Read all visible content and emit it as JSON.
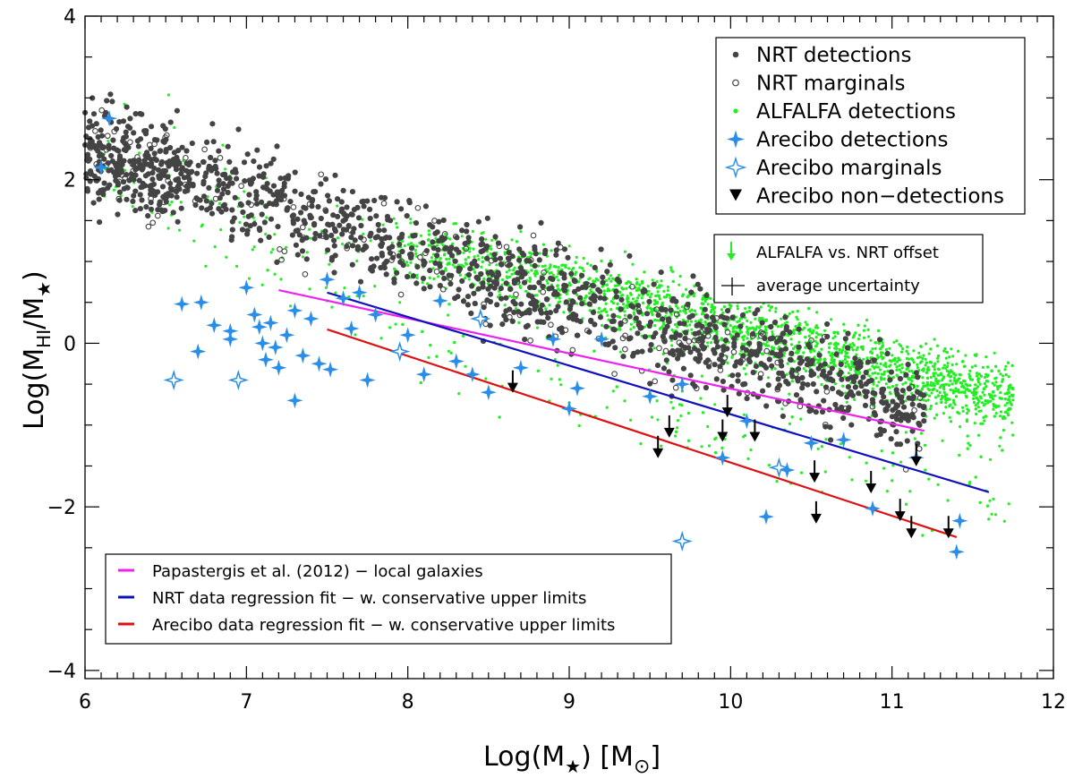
{
  "chart_data": {
    "type": "scatter",
    "xlabel_main": "Log(M",
    "xlabel_sub": "★",
    "xlabel_tail": ") [M",
    "xlabel_sub2": "⊙",
    "xlabel_end": "]",
    "ylabel_main": "Log(M",
    "ylabel_sub1": "HI",
    "ylabel_mid": "/M",
    "ylabel_sub2": "★",
    "ylabel_end": ")",
    "xlim": [
      6,
      12
    ],
    "ylim": [
      -4.1,
      4
    ],
    "xticks": [
      6,
      7,
      8,
      9,
      10,
      11,
      12
    ],
    "xtick_labels": [
      "6",
      "7",
      "8",
      "9",
      "10",
      "11",
      "12"
    ],
    "yticks": [
      -4,
      -2,
      0,
      2,
      4
    ],
    "ytick_labels": [
      "−4",
      "−2",
      "0",
      "2",
      "4"
    ],
    "colors": {
      "nrt": "#444444",
      "alfalfa": "#22ee22",
      "arecibo": "#2a8ee8",
      "papastergis": "#ee22ee",
      "nrt_fit": "#1111bb",
      "arecibo_fit": "#dd1111",
      "nondetection": "#000000"
    },
    "legend_top": {
      "items": [
        {
          "label": "NRT detections",
          "marker": "filled-circle"
        },
        {
          "label": "NRT marginals",
          "marker": "open-circle"
        },
        {
          "label": "ALFALFA detections",
          "marker": "green-dot"
        },
        {
          "label": "Arecibo detections",
          "marker": "filled-star"
        },
        {
          "label": "Arecibo marginals",
          "marker": "open-star"
        },
        {
          "label": "Arecibo non−detections",
          "marker": "triangle-down"
        }
      ]
    },
    "legend_mid": {
      "items": [
        {
          "label": "ALFALFA vs. NRT offset",
          "marker": "green-arrow"
        },
        {
          "label": "average uncertainty",
          "marker": "error-cross"
        }
      ]
    },
    "legend_bottom": {
      "items": [
        {
          "label": "Papastergis et al. (2012) − local galaxies",
          "color": "#ee22ee"
        },
        {
          "label": "NRT data regression fit − w. conservative upper limits",
          "color": "#1111bb"
        },
        {
          "label": "Arecibo data regression fit − w. conservative upper limits",
          "color": "#dd1111"
        }
      ]
    },
    "lines": [
      {
        "name": "Papastergis et al. (2012)",
        "color": "#ee22ee",
        "x": [
          7.2,
          11.2
        ],
        "y": [
          0.65,
          -1.07
        ]
      },
      {
        "name": "NRT data regression fit",
        "color": "#1111bb",
        "x": [
          7.5,
          11.6
        ],
        "y": [
          0.62,
          -1.82
        ]
      },
      {
        "name": "Arecibo data regression fit",
        "color": "#dd1111",
        "x": [
          7.5,
          11.4
        ],
        "y": [
          0.17,
          -2.37
        ]
      }
    ],
    "arecibo_detections": [
      [
        6.15,
        2.75
      ],
      [
        6.1,
        2.15
      ],
      [
        6.6,
        0.48
      ],
      [
        6.7,
        -0.1
      ],
      [
        6.72,
        0.5
      ],
      [
        6.8,
        0.22
      ],
      [
        6.9,
        0.15
      ],
      [
        6.9,
        0.05
      ],
      [
        7.0,
        0.68
      ],
      [
        7.05,
        0.35
      ],
      [
        7.08,
        0.2
      ],
      [
        7.1,
        0.0
      ],
      [
        7.12,
        -0.2
      ],
      [
        7.15,
        0.25
      ],
      [
        7.18,
        -0.05
      ],
      [
        7.2,
        -0.3
      ],
      [
        7.25,
        0.1
      ],
      [
        7.3,
        0.4
      ],
      [
        7.35,
        -0.15
      ],
      [
        7.4,
        0.3
      ],
      [
        7.45,
        -0.25
      ],
      [
        7.5,
        0.78
      ],
      [
        7.52,
        -0.32
      ],
      [
        7.6,
        0.55
      ],
      [
        7.65,
        0.18
      ],
      [
        7.7,
        0.62
      ],
      [
        7.75,
        -0.45
      ],
      [
        7.8,
        0.35
      ],
      [
        7.3,
        -0.7
      ],
      [
        8.0,
        0.1
      ],
      [
        8.1,
        -0.38
      ],
      [
        8.2,
        0.52
      ],
      [
        8.3,
        -0.22
      ],
      [
        8.4,
        -0.38
      ],
      [
        8.5,
        -0.6
      ],
      [
        9.0,
        -0.8
      ],
      [
        9.05,
        -0.55
      ],
      [
        9.2,
        0.05
      ],
      [
        9.5,
        -0.65
      ],
      [
        9.7,
        -0.5
      ],
      [
        9.95,
        -1.4
      ],
      [
        10.1,
        -0.95
      ],
      [
        10.22,
        -2.12
      ],
      [
        10.35,
        -1.55
      ],
      [
        10.5,
        -1.22
      ],
      [
        10.7,
        -1.18
      ],
      [
        10.88,
        -2.02
      ],
      [
        11.15,
        -1.4
      ],
      [
        11.42,
        -2.17
      ],
      [
        11.4,
        -2.55
      ],
      [
        8.9,
        0.05
      ],
      [
        8.7,
        -0.3
      ]
    ],
    "arecibo_marginals": [
      [
        6.55,
        -0.45
      ],
      [
        6.95,
        -0.45
      ],
      [
        9.7,
        -2.42
      ],
      [
        10.3,
        -1.52
      ],
      [
        7.95,
        -0.1
      ],
      [
        8.45,
        0.3
      ]
    ],
    "arecibo_nondetections": [
      [
        8.65,
        -0.55
      ],
      [
        9.55,
        -1.35
      ],
      [
        9.62,
        -1.1
      ],
      [
        9.95,
        -1.15
      ],
      [
        9.98,
        -0.85
      ],
      [
        10.15,
        -1.15
      ],
      [
        10.52,
        -1.65
      ],
      [
        10.53,
        -2.15
      ],
      [
        10.87,
        -1.78
      ],
      [
        11.05,
        -2.12
      ],
      [
        11.15,
        -1.45
      ],
      [
        11.12,
        -2.33
      ],
      [
        11.35,
        -2.33
      ]
    ]
  }
}
